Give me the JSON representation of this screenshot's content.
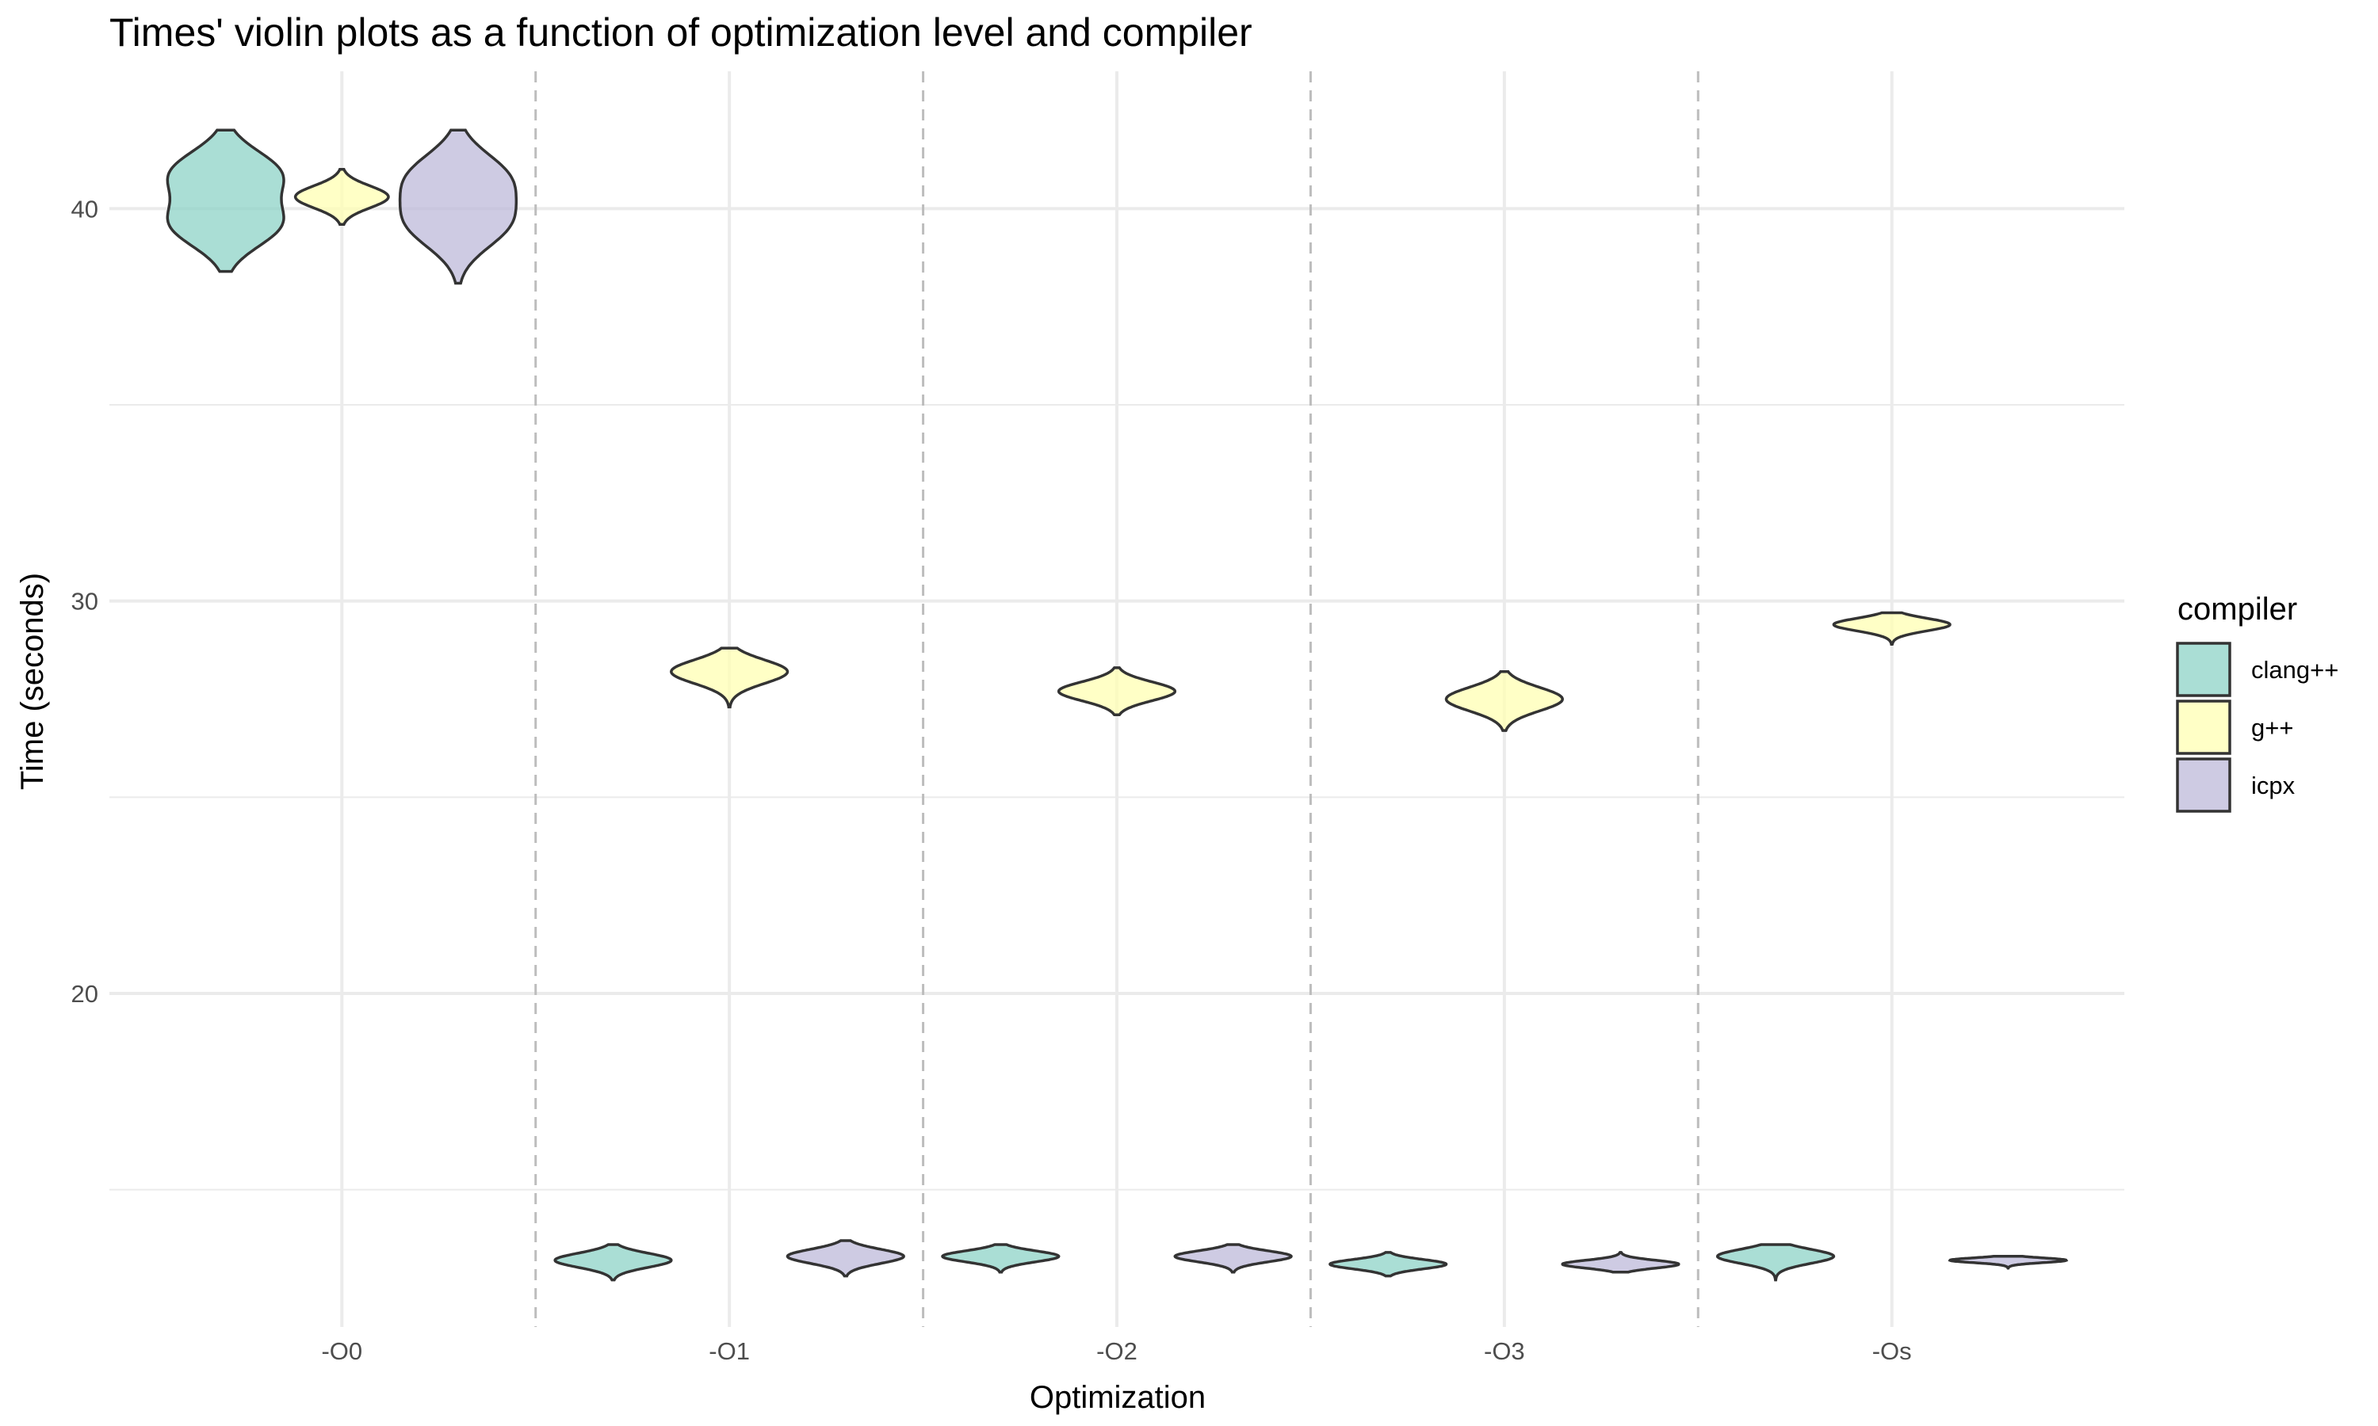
{
  "chart_data": {
    "type": "violin",
    "title": "Times' violin plots as a function of optimization level and compiler",
    "xlabel": "Optimization",
    "ylabel": "Time (seconds)",
    "categories": [
      "-O0",
      "-O1",
      "-O2",
      "-O3",
      "-Os"
    ],
    "yticks": [
      20,
      30,
      40
    ],
    "ylim": [
      11.5,
      43.5
    ],
    "grid": true,
    "legend": {
      "title": "compiler",
      "position": "right",
      "entries": [
        "clang++",
        "g++",
        "icpx"
      ]
    },
    "series": [
      {
        "name": "clang++",
        "color": "#8dd3c7",
        "violins": [
          {
            "category": "-O0",
            "min": 38.4,
            "max": 42.0,
            "modes": [
              40.9,
              39.6
            ],
            "width": 0.3
          },
          {
            "category": "-O1",
            "min": 12.7,
            "max": 13.6,
            "modes": [
              13.2
            ],
            "width": 0.3
          },
          {
            "category": "-O2",
            "min": 12.9,
            "max": 13.6,
            "modes": [
              13.3
            ],
            "width": 0.3
          },
          {
            "category": "-O3",
            "min": 12.8,
            "max": 13.4,
            "modes": [
              13.1
            ],
            "width": 0.3
          },
          {
            "category": "-Os",
            "min": 12.7,
            "max": 13.6,
            "modes": [
              13.3
            ],
            "width": 0.3
          }
        ]
      },
      {
        "name": "g++",
        "color": "#ffffb3",
        "violins": [
          {
            "category": "-O0",
            "min": 39.6,
            "max": 41.0,
            "modes": [
              40.3
            ],
            "width": 0.24
          },
          {
            "category": "-O1",
            "min": 27.3,
            "max": 28.8,
            "modes": [
              28.2
            ],
            "width": 0.3
          },
          {
            "category": "-O2",
            "min": 27.1,
            "max": 28.3,
            "modes": [
              27.7
            ],
            "width": 0.3
          },
          {
            "category": "-O3",
            "min": 26.7,
            "max": 28.2,
            "modes": [
              27.5
            ],
            "width": 0.3
          },
          {
            "category": "-Os",
            "min": 28.9,
            "max": 29.7,
            "modes": [
              29.4
            ],
            "width": 0.3
          }
        ]
      },
      {
        "name": "icpx",
        "color": "#bebada",
        "violins": [
          {
            "category": "-O0",
            "min": 38.1,
            "max": 42.0,
            "modes": [
              40.8,
              39.6
            ],
            "width": 0.3
          },
          {
            "category": "-O1",
            "min": 12.8,
            "max": 13.7,
            "modes": [
              13.3
            ],
            "width": 0.3
          },
          {
            "category": "-O2",
            "min": 12.9,
            "max": 13.6,
            "modes": [
              13.3
            ],
            "width": 0.3
          },
          {
            "category": "-O3",
            "min": 12.9,
            "max": 13.4,
            "modes": [
              13.1
            ],
            "width": 0.3
          },
          {
            "category": "-Os",
            "min": 13.0,
            "max": 13.3,
            "modes": [
              13.2
            ],
            "width": 0.3
          }
        ]
      }
    ]
  }
}
